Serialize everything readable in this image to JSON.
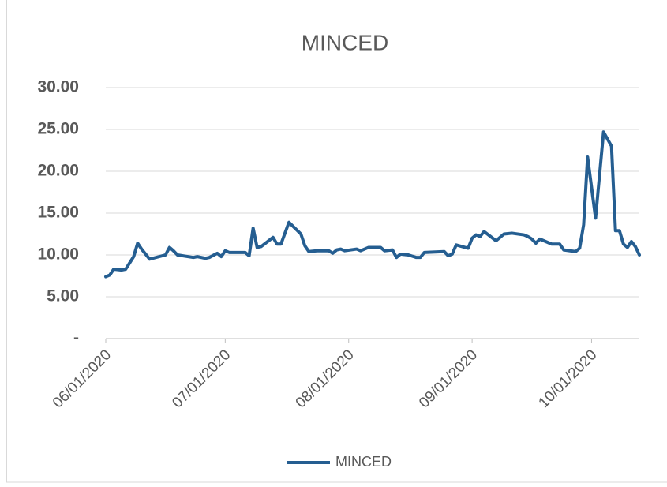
{
  "chart_data": {
    "type": "line",
    "title": "MINCED",
    "x": [
      "06/01/2020",
      "06/02/2020",
      "06/03/2020",
      "06/05/2020",
      "06/06/2020",
      "06/08/2020",
      "06/09/2020",
      "06/10/2020",
      "06/12/2020",
      "06/16/2020",
      "06/17/2020",
      "06/18/2020",
      "06/19/2020",
      "06/23/2020",
      "06/24/2020",
      "06/26/2020",
      "06/27/2020",
      "06/29/2020",
      "06/30/2020",
      "07/01/2020",
      "07/02/2020",
      "07/06/2020",
      "07/07/2020",
      "07/08/2020",
      "07/09/2020",
      "07/10/2020",
      "07/13/2020",
      "07/14/2020",
      "07/15/2020",
      "07/17/2020",
      "07/20/2020",
      "07/21/2020",
      "07/22/2020",
      "07/24/2020",
      "07/27/2020",
      "07/28/2020",
      "07/29/2020",
      "07/30/2020",
      "07/31/2020",
      "08/03/2020",
      "08/04/2020",
      "08/06/2020",
      "08/09/2020",
      "08/10/2020",
      "08/12/2020",
      "08/13/2020",
      "08/14/2020",
      "08/16/2020",
      "08/18/2020",
      "08/19/2020",
      "08/20/2020",
      "08/25/2020",
      "08/26/2020",
      "08/27/2020",
      "08/28/2020",
      "08/31/2020",
      "09/01/2020",
      "09/02/2020",
      "09/03/2020",
      "09/04/2020",
      "09/07/2020",
      "09/09/2020",
      "09/11/2020",
      "09/14/2020",
      "09/15/2020",
      "09/16/2020",
      "09/17/2020",
      "09/18/2020",
      "09/21/2020",
      "09/23/2020",
      "09/24/2020",
      "09/27/2020",
      "09/28/2020",
      "09/29/2020",
      "09/30/2020",
      "10/02/2020",
      "10/04/2020",
      "10/06/2020",
      "10/07/2020",
      "10/08/2020",
      "10/09/2020",
      "10/10/2020",
      "10/11/2020",
      "10/12/2020",
      "10/13/2020"
    ],
    "series": [
      {
        "name": "MINCED",
        "color": "#255e91",
        "values": [
          7.4,
          7.6,
          8.3,
          8.2,
          8.3,
          9.8,
          11.4,
          10.7,
          9.5,
          10.0,
          10.9,
          10.5,
          10.0,
          9.7,
          9.8,
          9.6,
          9.7,
          10.2,
          9.8,
          10.5,
          10.3,
          10.3,
          9.9,
          13.2,
          10.9,
          11.0,
          12.1,
          11.3,
          11.3,
          13.9,
          12.5,
          11.1,
          10.4,
          10.5,
          10.5,
          10.2,
          10.6,
          10.7,
          10.5,
          10.7,
          10.5,
          10.9,
          10.9,
          10.5,
          10.6,
          9.7,
          10.1,
          10.0,
          9.7,
          9.7,
          10.3,
          10.4,
          9.9,
          10.1,
          11.2,
          10.8,
          12.0,
          12.4,
          12.2,
          12.8,
          11.7,
          12.5,
          12.6,
          12.4,
          12.2,
          11.9,
          11.4,
          11.9,
          11.3,
          11.3,
          10.6,
          10.4,
          10.8,
          13.6,
          21.7,
          14.4,
          24.7,
          23.0,
          12.9,
          12.9,
          11.3,
          10.9,
          11.6,
          11.0,
          10.0
        ]
      }
    ],
    "xlim": [
      "06/01/2020",
      "10/13/2020"
    ],
    "xticks": [
      "06/01/2020",
      "07/01/2020",
      "08/01/2020",
      "09/01/2020",
      "10/01/2020"
    ],
    "ylim": [
      0,
      30
    ],
    "yticks": [
      {
        "value": 0,
        "label": "-"
      },
      {
        "value": 5,
        "label": "5.00"
      },
      {
        "value": 10,
        "label": "10.00"
      },
      {
        "value": 15,
        "label": "15.00"
      },
      {
        "value": 20,
        "label": "20.00"
      },
      {
        "value": 25,
        "label": "25.00"
      },
      {
        "value": 30,
        "label": "30.00"
      }
    ],
    "grid": true,
    "legend": "bottom"
  }
}
